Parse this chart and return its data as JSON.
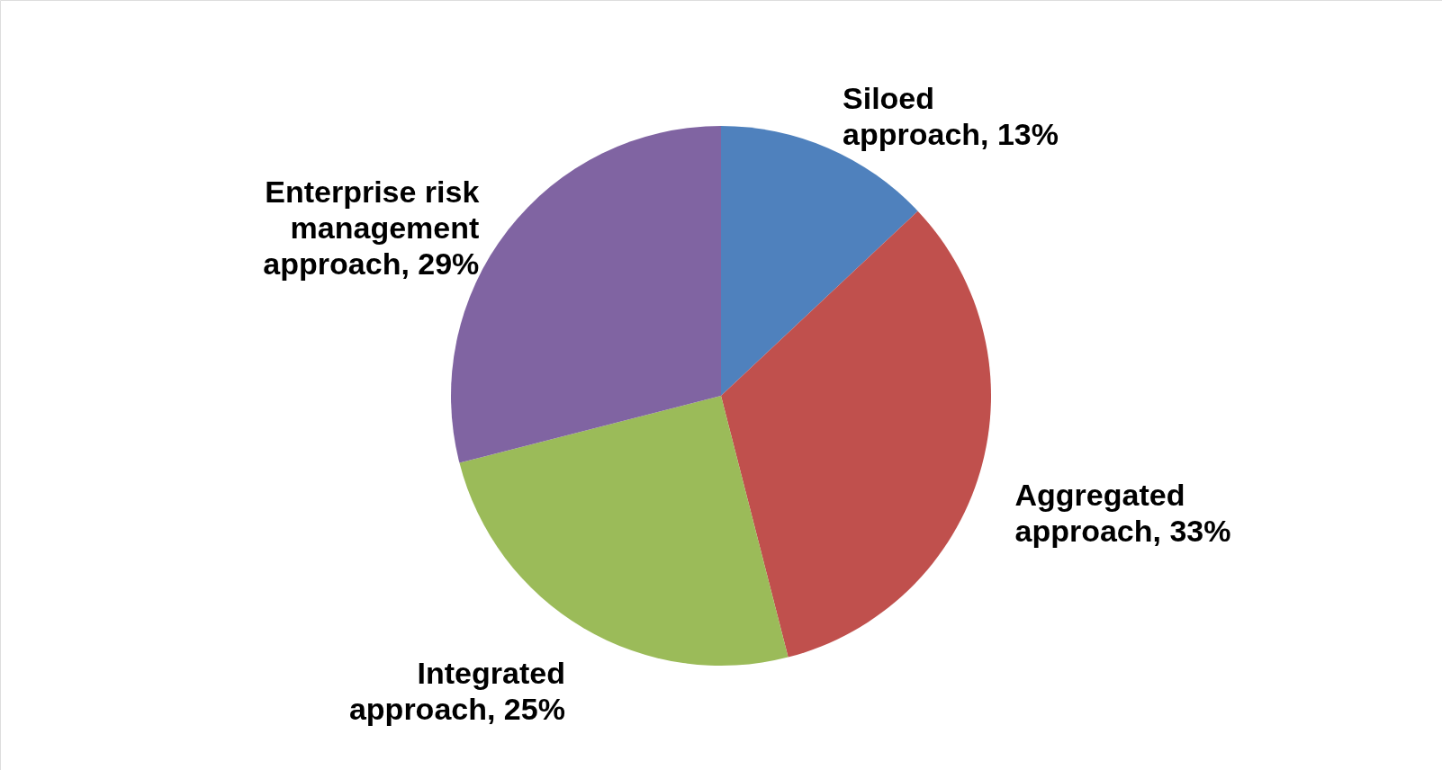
{
  "chart_data": {
    "type": "pie",
    "categories": [
      "Siloed approach, 13%",
      "Aggregated approach, 33%",
      "Integrated approach, 25%",
      "Enterprise risk management approach, 29%"
    ],
    "values": [
      13,
      33,
      25,
      29
    ],
    "colors": [
      "#4f81bd",
      "#c0504d",
      "#9bbb59",
      "#8064a2"
    ]
  }
}
